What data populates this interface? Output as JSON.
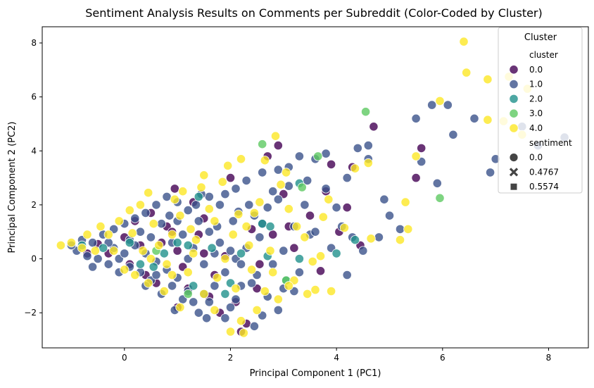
{
  "chart_data": {
    "type": "scatter",
    "title": "Sentiment Analysis Results on Comments per Subreddit (Color-Coded by Cluster)",
    "xlabel": "Principal Component 1 (PC1)",
    "ylabel": "Principal Component 2 (PC2)",
    "xlim": [
      -1.55,
      8.75
    ],
    "ylim": [
      -3.3,
      8.6
    ],
    "xticks": [
      0,
      2,
      4,
      6,
      8
    ],
    "yticks": [
      -2,
      0,
      2,
      4,
      6,
      8
    ],
    "xtick_labels": [
      "0",
      "2",
      "4",
      "6",
      "8"
    ],
    "ytick_labels": [
      "−2",
      "0",
      "2",
      "4",
      "6",
      "8"
    ],
    "grid": false,
    "legend": {
      "placement": "top-right",
      "title": "Cluster",
      "hue_header": "cluster",
      "hue_entries": [
        {
          "label": "0.0",
          "color": "#440154"
        },
        {
          "label": "1.0",
          "color": "#3b528b"
        },
        {
          "label": "2.0",
          "color": "#21918c"
        },
        {
          "label": "3.0",
          "color": "#5ec962"
        },
        {
          "label": "4.0",
          "color": "#fde725"
        }
      ],
      "style_header": "sentiment",
      "style_entries": [
        {
          "label": "0.0",
          "marker": "circle"
        },
        {
          "label": "0.4767",
          "marker": "x"
        },
        {
          "label": "0.5574",
          "marker": "square"
        }
      ]
    },
    "series": [
      {
        "name": "0.0",
        "color": "#440154",
        "points": [
          [
            0.95,
            2.6
          ],
          [
            2.0,
            3.0
          ],
          [
            2.9,
            4.2
          ],
          [
            3.9,
            3.5
          ],
          [
            4.7,
            4.9
          ],
          [
            5.6,
            4.1
          ],
          [
            3.8,
            2.5
          ],
          [
            4.05,
            1.0
          ],
          [
            3.2,
            0.4
          ],
          [
            2.4,
            1.1
          ],
          [
            1.5,
            1.5
          ],
          [
            0.8,
            1.2
          ],
          [
            0.3,
            0.5
          ],
          [
            1.7,
            -0.6
          ],
          [
            1.2,
            -1.1
          ],
          [
            1.8,
            -2.0
          ],
          [
            2.3,
            -2.4
          ],
          [
            2.2,
            -2.7
          ],
          [
            0.6,
            -0.9
          ],
          [
            -0.3,
            0.2
          ],
          [
            1.0,
            0.3
          ],
          [
            0.5,
            1.7
          ],
          [
            1.4,
            0.9
          ],
          [
            2.1,
            -1.6
          ],
          [
            3.1,
            1.2
          ],
          [
            4.3,
            3.4
          ],
          [
            5.5,
            3.0
          ],
          [
            4.2,
            1.9
          ],
          [
            3.7,
            -0.45
          ],
          [
            2.7,
            3.8
          ],
          [
            0.1,
            -0.2
          ],
          [
            -0.5,
            0.55
          ],
          [
            1.1,
            -0.3
          ],
          [
            0.7,
            0.6
          ],
          [
            1.9,
            0.1
          ],
          [
            2.55,
            -0.2
          ],
          [
            1.3,
            2.1
          ],
          [
            0.2,
            1.4
          ],
          [
            3.0,
            2.4
          ],
          [
            4.45,
            0.5
          ],
          [
            2.5,
            -1.1
          ],
          [
            1.6,
            -1.4
          ],
          [
            0.4,
            -0.6
          ],
          [
            -0.7,
            0.2
          ],
          [
            0.9,
            1.0
          ],
          [
            1.5,
            0.2
          ],
          [
            2.8,
            0.9
          ],
          [
            3.5,
            1.6
          ],
          [
            0.0,
            0.8
          ],
          [
            1.0,
            -1.8
          ]
        ]
      },
      {
        "name": "1.0",
        "color": "#3b528b",
        "points": [
          [
            8.3,
            4.5
          ],
          [
            7.8,
            4.2
          ],
          [
            7.5,
            4.9
          ],
          [
            7.0,
            3.7
          ],
          [
            6.9,
            3.2
          ],
          [
            6.6,
            5.2
          ],
          [
            6.2,
            4.6
          ],
          [
            6.1,
            5.7
          ],
          [
            5.8,
            5.7
          ],
          [
            5.5,
            5.2
          ],
          [
            5.6,
            3.6
          ],
          [
            5.9,
            2.8
          ],
          [
            5.0,
            1.6
          ],
          [
            5.2,
            1.1
          ],
          [
            4.8,
            0.8
          ],
          [
            4.6,
            3.7
          ],
          [
            4.6,
            4.2
          ],
          [
            4.4,
            4.1
          ],
          [
            4.2,
            3.0
          ],
          [
            4.0,
            1.9
          ],
          [
            4.3,
            0.8
          ],
          [
            4.2,
            -0.6
          ],
          [
            4.5,
            0.3
          ],
          [
            4.9,
            2.2
          ],
          [
            3.8,
            3.9
          ],
          [
            3.6,
            3.7
          ],
          [
            3.8,
            2.6
          ],
          [
            3.4,
            2.0
          ],
          [
            3.3,
            3.8
          ],
          [
            3.1,
            3.4
          ],
          [
            2.9,
            3.3
          ],
          [
            2.8,
            2.5
          ],
          [
            2.6,
            3.2
          ],
          [
            2.3,
            2.9
          ],
          [
            2.1,
            2.6
          ],
          [
            1.9,
            2.4
          ],
          [
            1.8,
            2.0
          ],
          [
            1.6,
            2.3
          ],
          [
            3.5,
            0.9
          ],
          [
            3.2,
            1.2
          ],
          [
            3.0,
            0.3
          ],
          [
            3.3,
            -0.5
          ],
          [
            3.0,
            -1.1
          ],
          [
            3.2,
            -1.2
          ],
          [
            2.9,
            -1.9
          ],
          [
            2.6,
            -2.1
          ],
          [
            2.7,
            -1.4
          ],
          [
            2.5,
            -0.6
          ],
          [
            2.3,
            0.4
          ],
          [
            2.1,
            0.0
          ],
          [
            1.9,
            -0.5
          ],
          [
            1.7,
            -1.0
          ],
          [
            1.5,
            -1.3
          ],
          [
            1.3,
            -1.6
          ],
          [
            1.1,
            -1.5
          ],
          [
            0.9,
            -1.0
          ],
          [
            0.7,
            -1.3
          ],
          [
            0.5,
            -0.8
          ],
          [
            0.3,
            -0.5
          ],
          [
            0.1,
            -0.3
          ],
          [
            -0.1,
            0.0
          ],
          [
            -0.3,
            -0.2
          ],
          [
            -0.5,
            0.0
          ],
          [
            -0.7,
            0.1
          ],
          [
            -0.9,
            0.3
          ],
          [
            -1.0,
            0.5
          ],
          [
            -0.8,
            0.7
          ],
          [
            -0.6,
            0.6
          ],
          [
            -0.4,
            0.9
          ],
          [
            -0.2,
            1.1
          ],
          [
            0.0,
            1.3
          ],
          [
            0.2,
            1.5
          ],
          [
            0.4,
            1.7
          ],
          [
            0.6,
            2.0
          ],
          [
            0.8,
            2.3
          ],
          [
            1.0,
            2.1
          ],
          [
            1.2,
            1.8
          ],
          [
            1.4,
            1.4
          ],
          [
            1.6,
            1.0
          ],
          [
            1.8,
            0.6
          ],
          [
            2.0,
            0.3
          ],
          [
            2.2,
            -0.2
          ],
          [
            2.4,
            -0.9
          ],
          [
            2.1,
            -1.5
          ],
          [
            1.9,
            -2.2
          ],
          [
            2.0,
            -1.8
          ],
          [
            1.4,
            -2.0
          ],
          [
            1.2,
            -1.2
          ],
          [
            1.0,
            -0.7
          ],
          [
            0.8,
            -0.4
          ],
          [
            0.6,
            -0.1
          ],
          [
            0.4,
            0.2
          ],
          [
            0.2,
            0.5
          ],
          [
            0.0,
            0.2
          ],
          [
            -0.2,
            0.4
          ],
          [
            0.3,
            1.0
          ],
          [
            0.5,
            0.8
          ],
          [
            0.7,
            1.3
          ],
          [
            0.9,
            0.6
          ],
          [
            1.1,
            0.9
          ],
          [
            1.3,
            0.4
          ],
          [
            1.5,
            -0.2
          ],
          [
            1.7,
            0.2
          ],
          [
            1.2,
            0.0
          ],
          [
            0.6,
            -0.6
          ],
          [
            0.1,
            0.7
          ],
          [
            -0.3,
            0.6
          ],
          [
            0.85,
            1.6
          ],
          [
            1.45,
            2.4
          ],
          [
            2.45,
            1.6
          ],
          [
            2.7,
            1.9
          ],
          [
            3.45,
            2.9
          ],
          [
            2.35,
            2.0
          ],
          [
            1.75,
            1.2
          ],
          [
            2.05,
            1.4
          ],
          [
            2.55,
            0.8
          ],
          [
            2.8,
            -0.2
          ],
          [
            2.2,
            -1.0
          ],
          [
            1.6,
            -1.6
          ],
          [
            2.9,
            2.2
          ],
          [
            3.1,
            2.7
          ],
          [
            0.95,
            -1.9
          ],
          [
            1.55,
            -2.2
          ],
          [
            2.45,
            -2.5
          ],
          [
            3.6,
            1.0
          ],
          [
            3.9,
            0.4
          ],
          [
            4.1,
            1.2
          ],
          [
            2.6,
            1.3
          ],
          [
            2.15,
            1.75
          ],
          [
            1.35,
            2.0
          ],
          [
            1.0,
            1.4
          ],
          [
            -0.1,
            -0.5
          ],
          [
            0.4,
            -1.0
          ],
          [
            -0.6,
            -0.3
          ]
        ]
      },
      {
        "name": "2.0",
        "color": "#21918c",
        "points": [
          [
            2.6,
            1.3
          ],
          [
            2.75,
            1.2
          ],
          [
            2.7,
            0.1
          ],
          [
            3.3,
            2.8
          ],
          [
            4.35,
            0.7
          ],
          [
            4.0,
            0.2
          ],
          [
            3.3,
            0.0
          ],
          [
            3.05,
            -0.8
          ],
          [
            1.9,
            -1.3
          ],
          [
            1.3,
            -1.0
          ],
          [
            1.4,
            2.3
          ],
          [
            0.1,
            0.6
          ],
          [
            -0.4,
            0.4
          ],
          [
            -0.8,
            0.5
          ],
          [
            1.0,
            0.6
          ],
          [
            1.65,
            0.4
          ],
          [
            2.2,
            0.2
          ],
          [
            0.55,
            -0.3
          ],
          [
            0.75,
            0.2
          ],
          [
            2.0,
            -0.9
          ],
          [
            1.2,
            0.5
          ],
          [
            0.3,
            -0.2
          ]
        ]
      },
      {
        "name": "3.0",
        "color": "#5ec962",
        "points": [
          [
            4.55,
            5.45
          ],
          [
            3.65,
            3.8
          ],
          [
            2.6,
            4.25
          ],
          [
            5.95,
            2.25
          ],
          [
            3.35,
            2.65
          ],
          [
            3.05,
            -0.8
          ],
          [
            1.2,
            -1.3
          ],
          [
            0.6,
            0.3
          ]
        ]
      },
      {
        "name": "4.0",
        "color": "#fde725",
        "points": [
          [
            6.4,
            8.05
          ],
          [
            6.45,
            6.9
          ],
          [
            6.85,
            6.65
          ],
          [
            7.25,
            6.75
          ],
          [
            7.6,
            6.3
          ],
          [
            6.85,
            5.15
          ],
          [
            7.15,
            5.1
          ],
          [
            7.5,
            4.6
          ],
          [
            5.95,
            5.85
          ],
          [
            5.5,
            3.8
          ],
          [
            5.3,
            2.1
          ],
          [
            5.2,
            0.7
          ],
          [
            5.35,
            1.1
          ],
          [
            4.65,
            0.75
          ],
          [
            4.6,
            3.55
          ],
          [
            4.35,
            3.35
          ],
          [
            4.15,
            1.15
          ],
          [
            3.85,
            2.2
          ],
          [
            3.75,
            1.55
          ],
          [
            3.6,
            -1.15
          ],
          [
            3.9,
            -1.2
          ],
          [
            3.55,
            -0.1
          ],
          [
            3.4,
            0.8
          ],
          [
            3.1,
            1.85
          ],
          [
            3.05,
            3.2
          ],
          [
            2.85,
            4.55
          ],
          [
            2.65,
            3.65
          ],
          [
            2.2,
            3.7
          ],
          [
            2.95,
            2.75
          ],
          [
            2.55,
            2.1
          ],
          [
            2.15,
            1.65
          ],
          [
            1.85,
            2.85
          ],
          [
            1.95,
            3.45
          ],
          [
            1.5,
            3.1
          ],
          [
            1.45,
            2.65
          ],
          [
            0.95,
            2.2
          ],
          [
            0.45,
            2.45
          ],
          [
            0.1,
            1.8
          ],
          [
            -0.1,
            1.4
          ],
          [
            -0.45,
            1.2
          ],
          [
            -0.7,
            0.9
          ],
          [
            -1.0,
            0.6
          ],
          [
            -1.2,
            0.5
          ],
          [
            0.9,
            0.9
          ],
          [
            1.25,
            1.1
          ],
          [
            1.7,
            1.4
          ],
          [
            2.05,
            0.9
          ],
          [
            2.35,
            0.5
          ],
          [
            2.75,
            0.3
          ],
          [
            3.2,
            -0.8
          ],
          [
            3.45,
            -1.3
          ],
          [
            2.5,
            -1.9
          ],
          [
            2.2,
            -2.3
          ],
          [
            2.0,
            -2.7
          ],
          [
            2.25,
            -2.75
          ],
          [
            1.7,
            -1.9
          ],
          [
            1.5,
            -1.3
          ],
          [
            1.05,
            -1.8
          ],
          [
            0.75,
            -1.2
          ],
          [
            0.45,
            -0.9
          ],
          [
            0.2,
            -0.6
          ],
          [
            0.0,
            -0.4
          ],
          [
            -0.2,
            0.3
          ],
          [
            0.35,
            0.3
          ],
          [
            0.65,
            0.5
          ],
          [
            1.35,
            0.7
          ],
          [
            1.9,
            0.0
          ],
          [
            2.4,
            -0.4
          ],
          [
            2.8,
            -0.5
          ],
          [
            2.65,
            -1.2
          ],
          [
            3.1,
            -1.0
          ],
          [
            1.2,
            -0.5
          ],
          [
            0.8,
            -0.2
          ],
          [
            0.15,
            0.95
          ],
          [
            0.55,
            1.3
          ],
          [
            1.05,
            1.6
          ],
          [
            1.6,
            1.85
          ],
          [
            2.45,
            1.7
          ],
          [
            3.25,
            1.2
          ],
          [
            0.3,
            2.0
          ],
          [
            -0.3,
            0.9
          ],
          [
            -0.55,
            0.3
          ],
          [
            1.3,
            0.2
          ],
          [
            1.75,
            -0.7
          ],
          [
            2.1,
            -1.1
          ],
          [
            2.9,
            -1.5
          ],
          [
            0.9,
            -0.6
          ],
          [
            0.5,
            0.0
          ],
          [
            -0.8,
            0.4
          ],
          [
            1.1,
            2.5
          ],
          [
            3.7,
            0.1
          ],
          [
            2.3,
            1.2
          ]
        ]
      }
    ]
  }
}
